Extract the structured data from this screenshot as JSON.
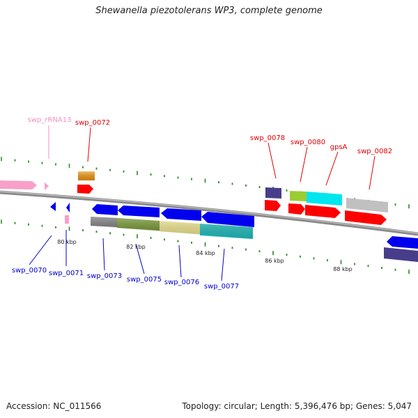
{
  "title": "Shewanella piezotolerans WP3, complete genome",
  "footer": {
    "accession": "Accession: NC_011566",
    "summary": "Topology: circular; Length: 5,396,476 bp; Genes: 5,047"
  },
  "kbp_labels": [
    "80 kbp",
    "82 kbp",
    "84 kbp",
    "86 kbp",
    "88 kbp"
  ],
  "gene_labels_top": [
    {
      "name": "swp_rRNA13",
      "color": "#f48fc0"
    },
    {
      "name": "swp_0072",
      "color": "#e00000"
    },
    {
      "name": "swp_0078",
      "color": "#e00000"
    },
    {
      "name": "swp_0080",
      "color": "#e00000"
    },
    {
      "name": "gpsA",
      "color": "#e00000"
    },
    {
      "name": "swp_0082",
      "color": "#e00000"
    }
  ],
  "gene_labels_bottom": [
    {
      "name": "swp_0070",
      "color": "#0000cc"
    },
    {
      "name": "swp_0071",
      "color": "#0000cc"
    },
    {
      "name": "swp_0073",
      "color": "#0000cc"
    },
    {
      "name": "swp_0075",
      "color": "#0000cc"
    },
    {
      "name": "swp_0076",
      "color": "#0000cc"
    },
    {
      "name": "swp_0077",
      "color": "#0000cc"
    }
  ],
  "colors": {
    "forward_cds": "#ff0000",
    "reverse_cds": "#0000ee",
    "rrna": "#f8a0c8",
    "backbone": "#888888",
    "gc_skew_ticks": "#2a8a2a"
  }
}
